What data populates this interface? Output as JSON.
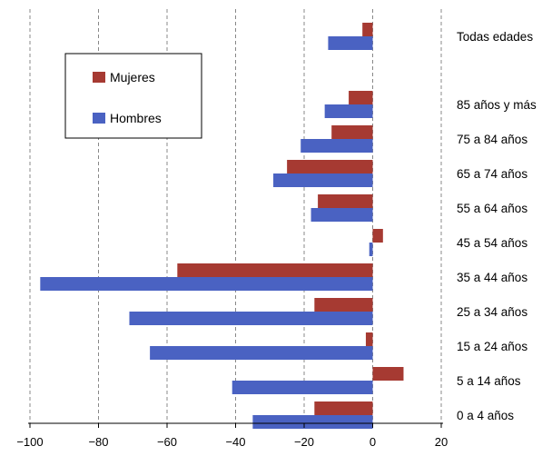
{
  "chart_data": {
    "type": "bar",
    "orientation": "horizontal",
    "categories": [
      "Todas edades",
      "85 años y más",
      "75 a 84 años",
      "65 a 74 años",
      "55 a 64 años",
      "45 a 54 años",
      "35 a 44 años",
      "25 a 34 años",
      "15 a 24 años",
      "5 a 14 años",
      "0 a 4 años"
    ],
    "series": [
      {
        "name": "Mujeres",
        "color": "#a63a32",
        "values": [
          -3,
          -7,
          -12,
          -25,
          -16,
          3,
          -57,
          -17,
          -2,
          9,
          -17
        ]
      },
      {
        "name": "Hombres",
        "color": "#4a62c2",
        "values": [
          -13,
          -14,
          -21,
          -29,
          -18,
          -1,
          -97,
          -71,
          -65,
          -41,
          -35
        ]
      }
    ],
    "xlim": [
      -100,
      20
    ],
    "xticks": [
      -100,
      -80,
      -60,
      -40,
      -20,
      0,
      20
    ],
    "xtick_labels": [
      "−100",
      "−80",
      "−60",
      "−40",
      "−20",
      "0",
      "20"
    ],
    "grid": "vertical dashed",
    "legend": "top-left",
    "title": "",
    "xlabel": "",
    "ylabel": ""
  }
}
